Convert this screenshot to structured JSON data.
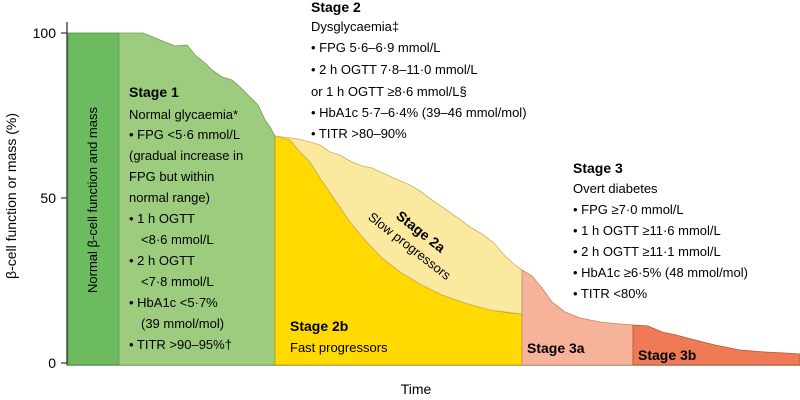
{
  "axes": {
    "y_label": "β-cell function or mass (%)",
    "x_label": "Time",
    "y_ticks": [
      "100",
      "50",
      "0"
    ]
  },
  "colors": {
    "normal_band": "#6dbb5f",
    "stage1": "#9dcc7e",
    "stage2a": "#fbe9a0",
    "stage2b": "#ffd900",
    "stage3a": "#f7b39a",
    "stage3b": "#ee7b55"
  },
  "normal_band_label": "Normal β-cell function and mass",
  "stage1": {
    "title": "Stage 1",
    "lines": [
      "Normal glycaemia*",
      "• FPG <5·6 mmol/L",
      "(gradual increase in",
      "FPG but within",
      "normal range)",
      "• 1 h OGTT",
      "<8·6 mmol/L",
      "• 2 h OGTT",
      "<7·8 mmol/L",
      "• HbA1c <5·7%",
      "(39 mmol/mol)",
      "• TITR >90–95%†"
    ]
  },
  "stage2": {
    "title": "Stage 2",
    "lines": [
      "Dysglycaemia‡",
      "• FPG 5·6–6·9 mmol/L",
      "• 2 h OGTT 7·8–11·0 mmol/L",
      "or 1 h OGTT ≥8·6 mmol/L§",
      "• HbA1c 5·7–6·4% (39–46 mmol/mol)",
      "• TITR >80–90%"
    ]
  },
  "stage2a": {
    "title": "Stage 2a",
    "subtitle": "Slow progressors"
  },
  "stage2b": {
    "title": "Stage 2b",
    "subtitle": "Fast progressors"
  },
  "stage3": {
    "title": "Stage 3",
    "lines": [
      "Overt diabetes",
      "• FPG ≥7·0 mmol/L",
      "• 1 h OGTT ≥11·6 mmol/L",
      "• 2 h OGTT ≥11·1 mmol/L",
      "• HbA1c ≥6·5% (48 mmol/mol)",
      "• TITR <80%"
    ]
  },
  "stage3a": {
    "title": "Stage 3a"
  },
  "stage3b": {
    "title": "Stage 3b"
  }
}
